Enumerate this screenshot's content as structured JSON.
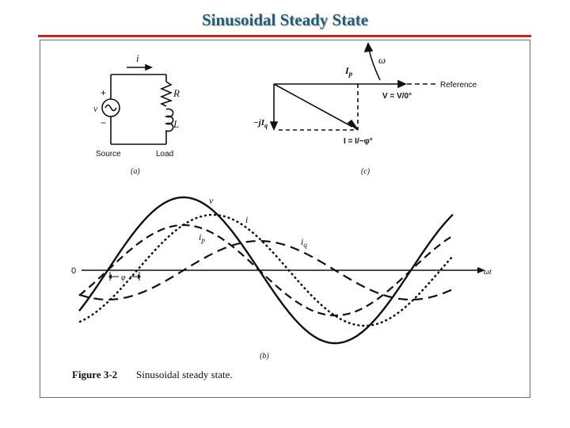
{
  "slide": {
    "title": "Sinusoidal Steady State"
  },
  "circuit": {
    "current_label": "i",
    "plus_label": "+",
    "voltage_label": "v",
    "minus_label": "−",
    "r_label": "R",
    "l_label": "L",
    "source_label": "Source",
    "load_label": "Load",
    "panel_label": "(a)"
  },
  "phasor": {
    "omega_label": "ω",
    "ip_label_main": "I",
    "ip_label_sub": "p",
    "reference_label": "Reference",
    "v_label": "V = V/0°",
    "jiq_label_main": "−jI",
    "jiq_label_sub": "q",
    "i_label": "I = I/−φ°",
    "panel_label": "(c)"
  },
  "waveforms": {
    "zero_label": "0",
    "axis_label": "ωt",
    "v_label": "v",
    "i_label": "i",
    "ip_label_main": "i",
    "ip_label_sub": "p",
    "iq_label_main": "i",
    "iq_label_sub": "q",
    "phi_label": "φ",
    "panel_label": "(b)"
  },
  "caption": {
    "figure_number": "Figure 3-2",
    "text": "Sinusoidal steady state."
  },
  "colors": {
    "title": "#1f5f7a",
    "rule": "#cc2222",
    "ink": "#111111"
  }
}
